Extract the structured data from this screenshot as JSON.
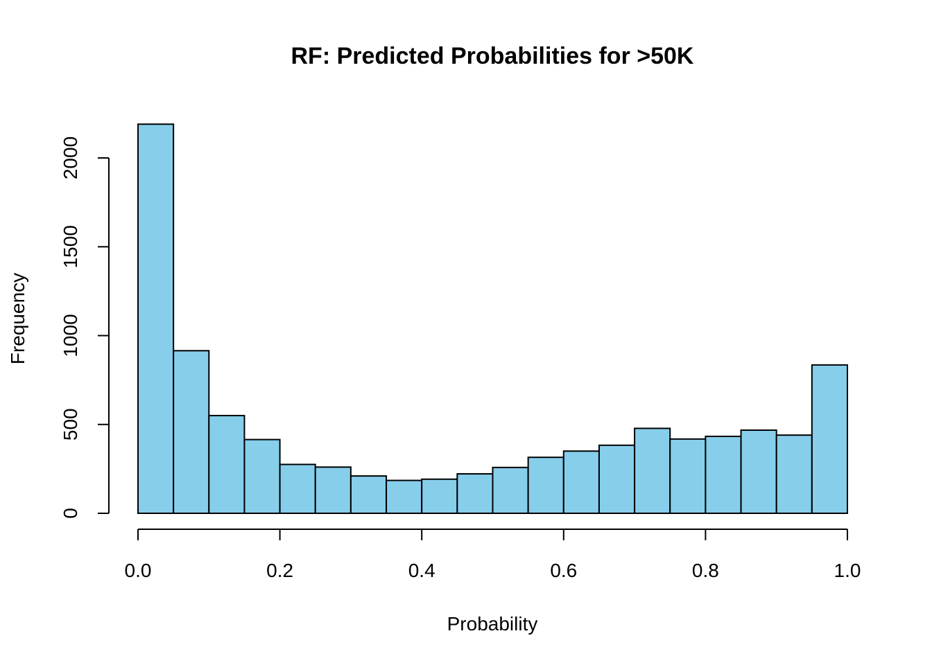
{
  "chart_data": {
    "type": "bar",
    "title": "RF: Predicted Probabilities for >50K",
    "xlabel": "Probability",
    "ylabel": "Frequency",
    "xlim": [
      0,
      1
    ],
    "ylim": [
      0,
      2190
    ],
    "x_ticks": [
      "0.0",
      "0.2",
      "0.4",
      "0.6",
      "0.8",
      "1.0"
    ],
    "y_ticks": [
      "0",
      "500",
      "1000",
      "1500",
      "2000"
    ],
    "bin_width": 0.05,
    "bins": [
      0.0,
      0.05,
      0.1,
      0.15,
      0.2,
      0.25,
      0.3,
      0.35,
      0.4,
      0.45,
      0.5,
      0.55,
      0.6,
      0.65,
      0.7,
      0.75,
      0.8,
      0.85,
      0.9,
      0.95
    ],
    "values": [
      2190,
      915,
      550,
      415,
      275,
      260,
      210,
      185,
      192,
      222,
      258,
      315,
      350,
      383,
      478,
      418,
      433,
      468,
      440,
      835
    ],
    "bar_color": "#87CEEB",
    "grid": false,
    "legend": "none"
  }
}
